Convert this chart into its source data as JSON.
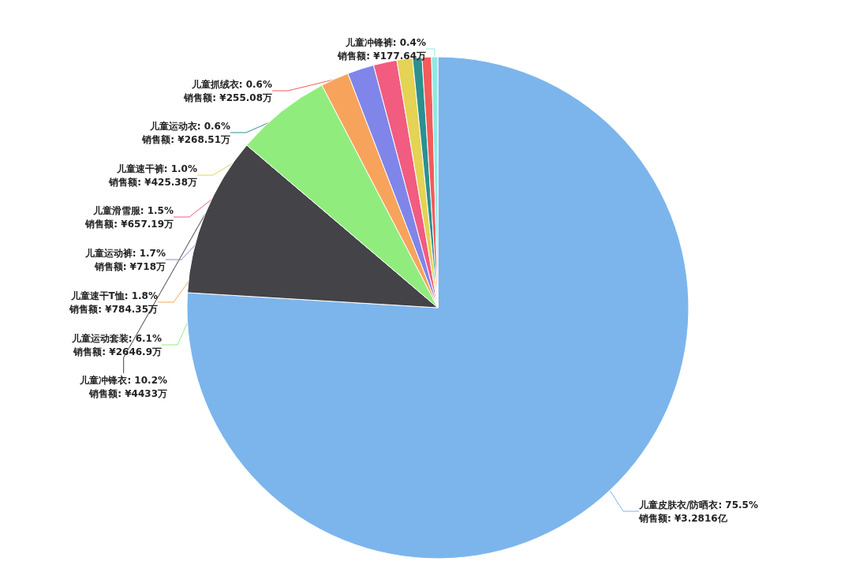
{
  "chart_data": {
    "type": "pie",
    "categories": [
      "儿童皮肤衣/防晒衣",
      "儿童冲锋衣",
      "儿童运动套装",
      "儿童速干T恤",
      "儿童运动裤",
      "儿童滑雪服",
      "儿童速干裤",
      "儿童运动衣",
      "儿童抓绒衣",
      "儿童冲锋裤"
    ],
    "values": [
      75.5,
      10.2,
      6.1,
      1.8,
      1.7,
      1.5,
      1.0,
      0.6,
      0.6,
      0.4
    ],
    "value_labels": [
      "75.5%\n销售额: ¥3.2816亿",
      "10.2%\n销售额: ¥4433万",
      "6.1%\n销售额: ¥2646.9万",
      "1.8%\n销售额: ¥784.35万",
      "1.7%\n销售额: ¥718万",
      "1.5%\n销售额: ¥657.19万",
      "1.0%\n销售额: ¥425.38万",
      "0.6%\n销售额: ¥268.51万",
      "0.6%\n销售额: ¥255.08万",
      "0.4%\n销售额: ¥177.64万"
    ],
    "colors": [
      "#7cb5ec",
      "#434348",
      "#90ed7d",
      "#f7a35c",
      "#8085e9",
      "#f15c80",
      "#e4d354",
      "#2b908f",
      "#f45b5b",
      "#91e8e1"
    ],
    "legend": false
  }
}
